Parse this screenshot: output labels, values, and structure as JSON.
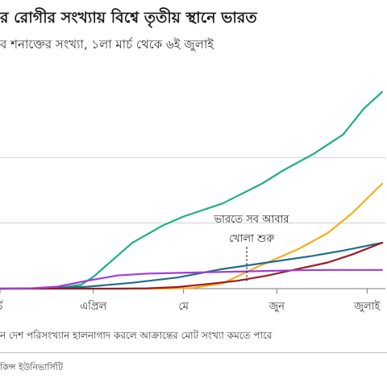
{
  "chart_data": {
    "type": "line",
    "title": "র রোগীর সংখ্যায় বিশ্বে তৃতীয় স্থানে ভারত",
    "subtitle": "ব শনাক্তের সংখ্যা, ১লা মার্চ থেকে ৬ই জুলাই",
    "x_ticks": [
      {
        "day": 1,
        "label": "র্চ"
      },
      {
        "day": 32,
        "label": "এপ্রিল"
      },
      {
        "day": 62,
        "label": "মে"
      },
      {
        "day": 93,
        "label": "জুন"
      },
      {
        "day": 123,
        "label": "জুলাই"
      }
    ],
    "xlim": [
      1,
      128
    ],
    "ylim": [
      0,
      3000000
    ],
    "grid_y": [
      0,
      1000000,
      2000000
    ],
    "annotation": {
      "day": 83,
      "lines": [
        "ভারতে সব আবার",
        "খোলা শুরু"
      ]
    },
    "series": [
      {
        "color": "#1db07f",
        "points": [
          [
            1,
            100
          ],
          [
            20,
            8000
          ],
          [
            28,
            60000
          ],
          [
            32,
            180000
          ],
          [
            38,
            420000
          ],
          [
            45,
            700000
          ],
          [
            55,
            960000
          ],
          [
            62,
            1100000
          ],
          [
            75,
            1300000
          ],
          [
            88,
            1600000
          ],
          [
            95,
            1800000
          ],
          [
            105,
            2050000
          ],
          [
            115,
            2350000
          ],
          [
            122,
            2750000
          ],
          [
            128,
            3000000
          ]
        ]
      },
      {
        "color": "#f4ae1c",
        "points": [
          [
            1,
            0
          ],
          [
            40,
            0
          ],
          [
            55,
            100
          ],
          [
            65,
            10000
          ],
          [
            75,
            80000
          ],
          [
            85,
            300000
          ],
          [
            95,
            500000
          ],
          [
            100,
            600000
          ],
          [
            110,
            850000
          ],
          [
            118,
            1150000
          ],
          [
            128,
            1600000
          ]
        ]
      },
      {
        "color": "#1f6e8c",
        "points": [
          [
            1,
            0
          ],
          [
            15,
            5000
          ],
          [
            30,
            30000
          ],
          [
            45,
            90000
          ],
          [
            60,
            170000
          ],
          [
            75,
            300000
          ],
          [
            90,
            400000
          ],
          [
            105,
            500000
          ],
          [
            115,
            580000
          ],
          [
            128,
            700000
          ]
        ]
      },
      {
        "color": "#9b1d25",
        "points": [
          [
            1,
            0
          ],
          [
            40,
            0
          ],
          [
            50,
            5000
          ],
          [
            60,
            25000
          ],
          [
            70,
            70000
          ],
          [
            80,
            120000
          ],
          [
            90,
            200000
          ],
          [
            100,
            300000
          ],
          [
            110,
            400000
          ],
          [
            118,
            520000
          ],
          [
            128,
            700000
          ]
        ]
      },
      {
        "color": "#a13bd9",
        "points": [
          [
            1,
            0
          ],
          [
            10,
            1000
          ],
          [
            20,
            30000
          ],
          [
            30,
            120000
          ],
          [
            40,
            200000
          ],
          [
            50,
            230000
          ],
          [
            60,
            240000
          ],
          [
            70,
            250000
          ],
          [
            80,
            260000
          ],
          [
            90,
            270000
          ],
          [
            100,
            280000
          ],
          [
            110,
            285000
          ],
          [
            128,
            285000
          ]
        ]
      }
    ]
  },
  "footnote": "ন দেশ পরিসংখ্যান হালনাগাদ করলে আক্রান্তের মোট সংখ্যা কমতে পারে",
  "source": "কিন্স ইউনিভার্সিটি"
}
